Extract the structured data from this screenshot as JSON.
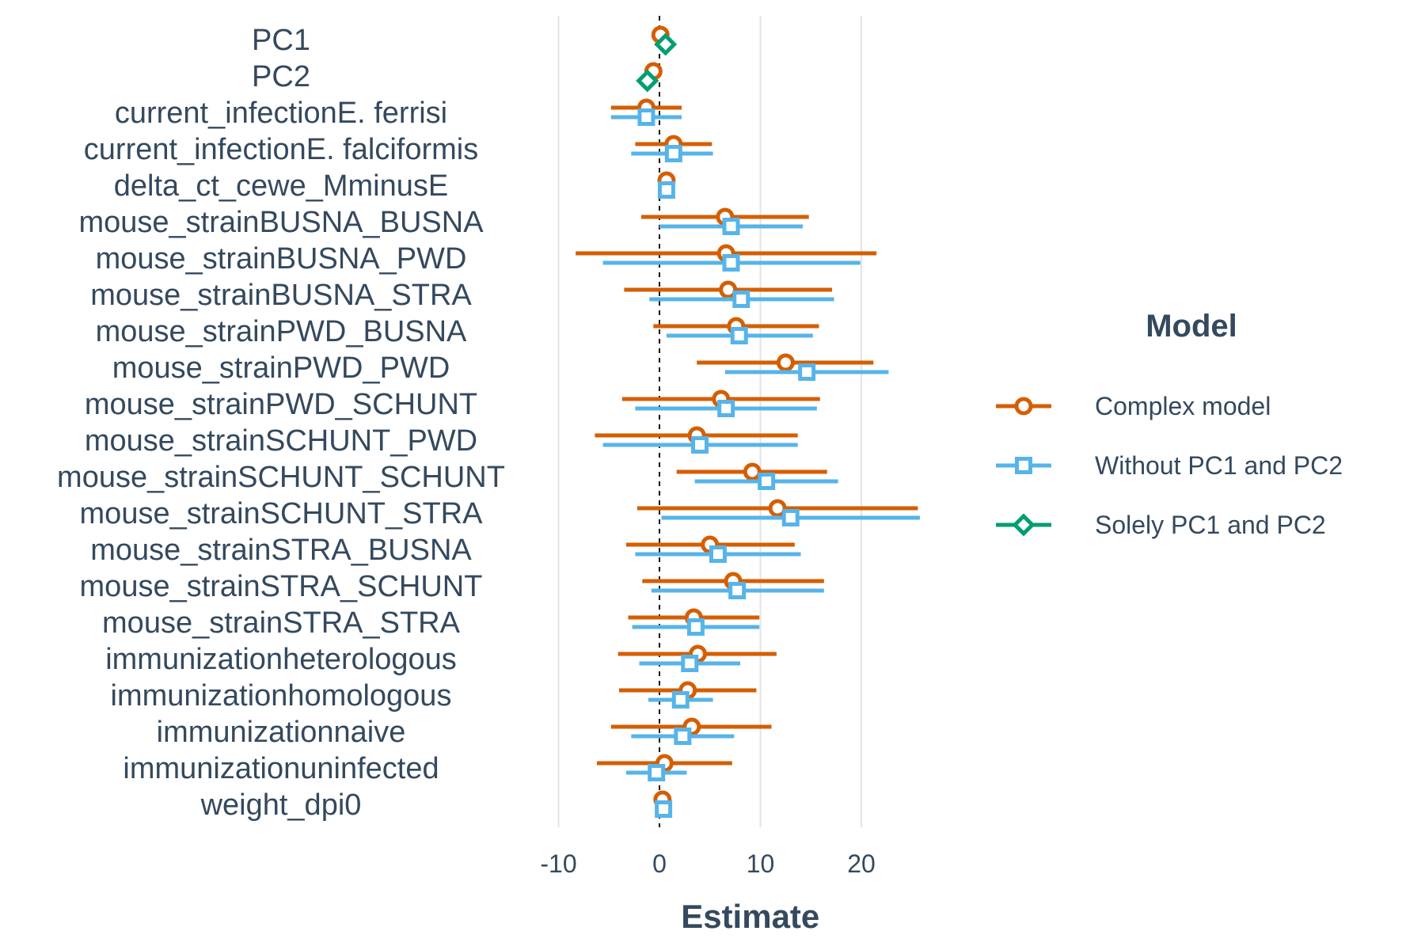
{
  "chart_data": {
    "type": "forest",
    "xlabel": "Estimate",
    "xlim": [
      -10,
      26
    ],
    "x_ticks": [
      -10,
      0,
      10,
      20
    ],
    "x_tick_labels": [
      "-10",
      "0",
      "10",
      "20"
    ],
    "reference_line": 0,
    "grid": true,
    "legend": {
      "title": "Model",
      "position": "right"
    },
    "categories": [
      "PC1",
      "PC2",
      "current_infectionE. ferrisi",
      "current_infectionE. falciformis",
      "delta_ct_cewe_MminusE",
      "mouse_strainBUSNA_BUSNA",
      "mouse_strainBUSNA_PWD",
      "mouse_strainBUSNA_STRA",
      "mouse_strainPWD_BUSNA",
      "mouse_strainPWD_PWD",
      "mouse_strainPWD_SCHUNT",
      "mouse_strainSCHUNT_PWD",
      "mouse_strainSCHUNT_SCHUNT",
      "mouse_strainSCHUNT_STRA",
      "mouse_strainSTRA_BUSNA",
      "mouse_strainSTRA_SCHUNT",
      "mouse_strainSTRA_STRA",
      "immunizationheterologous",
      "immunizationhomologous",
      "immunizationnaive",
      "immunizationuninfected",
      "weight_dpi0"
    ],
    "series": [
      {
        "name": "Complex model",
        "color": "#d55e00",
        "marker": "circle",
        "points": [
          {
            "y": "PC1",
            "est": 0.1,
            "lo": -0.1,
            "hi": 0.3
          },
          {
            "y": "PC2",
            "est": -0.6,
            "lo": -0.8,
            "hi": -0.4
          },
          {
            "y": "current_infectionE. ferrisi",
            "est": -1.3,
            "lo": -4.8,
            "hi": 2.2
          },
          {
            "y": "current_infectionE. falciformis",
            "est": 1.4,
            "lo": -2.4,
            "hi": 5.2
          },
          {
            "y": "delta_ct_cewe_MminusE",
            "est": 0.7,
            "lo": 0.4,
            "hi": 1.0
          },
          {
            "y": "mouse_strainBUSNA_BUSNA",
            "est": 6.5,
            "lo": -1.8,
            "hi": 14.8
          },
          {
            "y": "mouse_strainBUSNA_PWD",
            "est": 6.6,
            "lo": -8.3,
            "hi": 21.5
          },
          {
            "y": "mouse_strainBUSNA_STRA",
            "est": 6.8,
            "lo": -3.5,
            "hi": 17.1
          },
          {
            "y": "mouse_strainPWD_BUSNA",
            "est": 7.6,
            "lo": -0.6,
            "hi": 15.8
          },
          {
            "y": "mouse_strainPWD_PWD",
            "est": 12.5,
            "lo": 3.7,
            "hi": 21.2
          },
          {
            "y": "mouse_strainPWD_SCHUNT",
            "est": 6.1,
            "lo": -3.7,
            "hi": 15.9
          },
          {
            "y": "mouse_strainSCHUNT_PWD",
            "est": 3.7,
            "lo": -6.4,
            "hi": 13.7
          },
          {
            "y": "mouse_strainSCHUNT_SCHUNT",
            "est": 9.2,
            "lo": 1.7,
            "hi": 16.6
          },
          {
            "y": "mouse_strainSCHUNT_STRA",
            "est": 11.7,
            "lo": -2.2,
            "hi": 25.6
          },
          {
            "y": "mouse_strainSTRA_BUSNA",
            "est": 5.0,
            "lo": -3.3,
            "hi": 13.4
          },
          {
            "y": "mouse_strainSTRA_SCHUNT",
            "est": 7.3,
            "lo": -1.7,
            "hi": 16.3
          },
          {
            "y": "mouse_strainSTRA_STRA",
            "est": 3.4,
            "lo": -3.1,
            "hi": 9.9
          },
          {
            "y": "immunizationheterologous",
            "est": 3.8,
            "lo": -4.1,
            "hi": 11.6
          },
          {
            "y": "immunizationhomologous",
            "est": 2.8,
            "lo": -4.0,
            "hi": 9.6
          },
          {
            "y": "immunizationnaive",
            "est": 3.2,
            "lo": -4.8,
            "hi": 11.1
          },
          {
            "y": "immunizationuninfected",
            "est": 0.5,
            "lo": -6.2,
            "hi": 7.2
          },
          {
            "y": "weight_dpi0",
            "est": 0.3,
            "lo": 0.1,
            "hi": 0.5
          }
        ]
      },
      {
        "name": "Without PC1 and PC2",
        "color": "#56b4e9",
        "marker": "square",
        "points": [
          {
            "y": "current_infectionE. ferrisi",
            "est": -1.3,
            "lo": -4.8,
            "hi": 2.2
          },
          {
            "y": "current_infectionE. falciformis",
            "est": 1.4,
            "lo": -2.8,
            "hi": 5.3
          },
          {
            "y": "delta_ct_cewe_MminusE",
            "est": 0.7,
            "lo": 0.4,
            "hi": 1.0
          },
          {
            "y": "mouse_strainBUSNA_BUSNA",
            "est": 7.1,
            "lo": 0.0,
            "hi": 14.2
          },
          {
            "y": "mouse_strainBUSNA_PWD",
            "est": 7.1,
            "lo": -5.6,
            "hi": 19.9
          },
          {
            "y": "mouse_strainBUSNA_STRA",
            "est": 8.1,
            "lo": -1.0,
            "hi": 17.3
          },
          {
            "y": "mouse_strainPWD_BUSNA",
            "est": 7.9,
            "lo": 0.7,
            "hi": 15.2
          },
          {
            "y": "mouse_strainPWD_PWD",
            "est": 14.6,
            "lo": 6.5,
            "hi": 22.7
          },
          {
            "y": "mouse_strainPWD_SCHUNT",
            "est": 6.6,
            "lo": -2.4,
            "hi": 15.6
          },
          {
            "y": "mouse_strainSCHUNT_PWD",
            "est": 4.0,
            "lo": -5.6,
            "hi": 13.7
          },
          {
            "y": "mouse_strainSCHUNT_SCHUNT",
            "est": 10.6,
            "lo": 3.5,
            "hi": 17.7
          },
          {
            "y": "mouse_strainSCHUNT_STRA",
            "est": 13.0,
            "lo": 0.2,
            "hi": 25.8
          },
          {
            "y": "mouse_strainSTRA_BUSNA",
            "est": 5.8,
            "lo": -2.4,
            "hi": 14.0
          },
          {
            "y": "mouse_strainSTRA_SCHUNT",
            "est": 7.7,
            "lo": -0.8,
            "hi": 16.3
          },
          {
            "y": "mouse_strainSTRA_STRA",
            "est": 3.6,
            "lo": -2.7,
            "hi": 9.9
          },
          {
            "y": "immunizationheterologous",
            "est": 3.0,
            "lo": -2.0,
            "hi": 8.0
          },
          {
            "y": "immunizationhomologous",
            "est": 2.1,
            "lo": -1.1,
            "hi": 5.3
          },
          {
            "y": "immunizationnaive",
            "est": 2.3,
            "lo": -2.8,
            "hi": 7.4
          },
          {
            "y": "immunizationuninfected",
            "est": -0.3,
            "lo": -3.3,
            "hi": 2.7
          },
          {
            "y": "weight_dpi0",
            "est": 0.4,
            "lo": 0.2,
            "hi": 0.6
          }
        ]
      },
      {
        "name": "Solely PC1 and PC2",
        "color": "#009e73",
        "marker": "diamond",
        "points": [
          {
            "y": "PC1",
            "est": 0.6,
            "lo": 0.4,
            "hi": 0.8
          },
          {
            "y": "PC2",
            "est": -1.2,
            "lo": -1.4,
            "hi": -1.0
          }
        ]
      }
    ]
  }
}
